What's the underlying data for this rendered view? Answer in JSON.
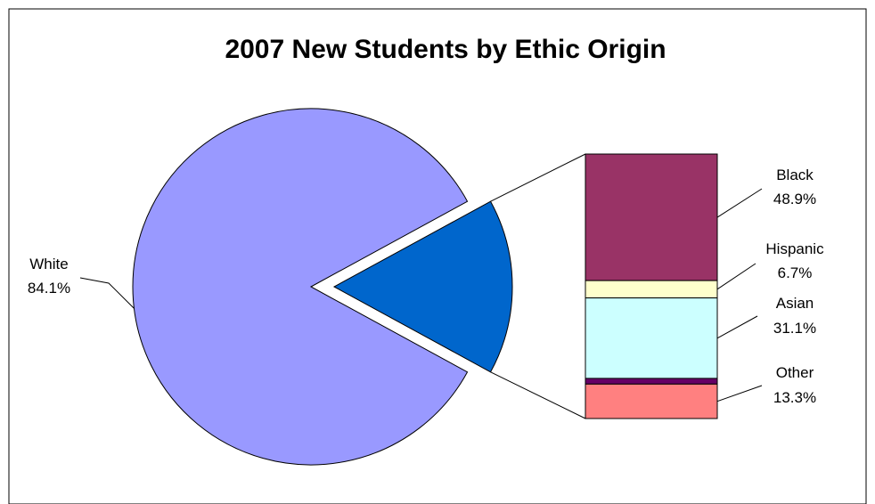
{
  "chart_data": {
    "type": "bar-of-pie",
    "title": "2007 New Students by Ethic Origin",
    "pie": {
      "slices": [
        {
          "name": "White",
          "label": "84.1%",
          "value": 84.1,
          "color": "#9999ff"
        },
        {
          "name": "",
          "label": "",
          "value": 15.9,
          "color": "#0066cc",
          "exploded": true
        }
      ]
    },
    "bar": {
      "segments": [
        {
          "name": "Black",
          "label": "48.9%",
          "value": 48.9,
          "color": "#993366"
        },
        {
          "name": "Hispanic",
          "label": "6.7%",
          "value": 6.7,
          "color": "#ffffcc"
        },
        {
          "name": "Asian",
          "label": "31.1%",
          "value": 31.1,
          "color": "#ccffff"
        },
        {
          "name": "",
          "label": "",
          "value": 2.2,
          "color": "#660066"
        },
        {
          "name": "Other",
          "label": "13.3%",
          "value": 13.3,
          "color": "#ff8080"
        }
      ]
    },
    "legend": "none"
  }
}
